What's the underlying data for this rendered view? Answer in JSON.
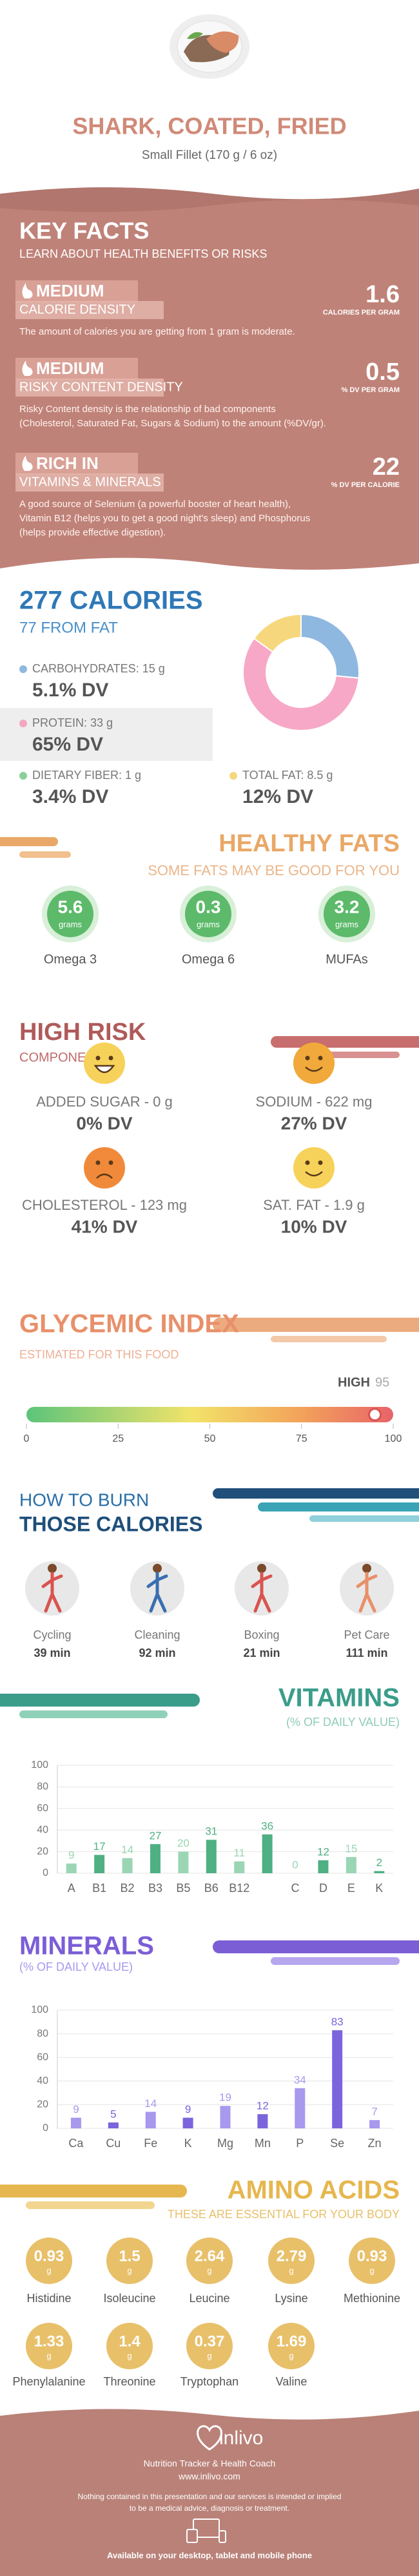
{
  "header": {
    "title": "SHARK, COATED, FRIED",
    "subtitle": "Small Fillet (170 g / 6 oz)"
  },
  "key_facts": {
    "title": "KEY FACTS",
    "subtitle": "LEARN ABOUT HEALTH BENEFITS OR RISKS",
    "items": [
      {
        "level": "MEDIUM",
        "label": "CALORIE DENSITY",
        "value": 1.6,
        "unit": "CALORIES PER GRAM",
        "text": [
          "The amount of calories you are getting from 1 gram is moderate."
        ]
      },
      {
        "level": "MEDIUM",
        "label": "RISKY CONTENT DENSITY",
        "value": 0.5,
        "unit": "% DV PER GRAM",
        "text": [
          "Risky Content density is the relationship of bad components",
          "(Cholesterol, Saturated Fat, Sugars & Sodium) to the amount (%DV/gr)."
        ]
      },
      {
        "level": "RICH IN",
        "label": "VITAMINS & MINERALS",
        "value": 22,
        "unit": "% DV PER CALORIE",
        "text": [
          "A good source of Selenium (a powerful booster of heart health),",
          "Vitamin B12 (helps you to get a good night's sleep) and Phosphorus",
          "(helps provide effective digestion)."
        ]
      }
    ]
  },
  "calories": {
    "title": "277 CALORIES",
    "subtitle": "77 FROM FAT",
    "nutrients": [
      {
        "name": "CARBOHYDRATES: 15 g",
        "dv": "5.1% DV",
        "color": "#8fb8e0"
      },
      {
        "name": "PROTEIN: 33 g",
        "dv": "65% DV",
        "color": "#f4a6c0"
      },
      {
        "name": "DIETARY FIBER: 1 g",
        "dv": "3.4% DV",
        "color": "#8ccf9a"
      },
      {
        "name": "TOTAL FAT: 8.5 g",
        "dv": "12% DV",
        "color": "#f5d77e"
      }
    ]
  },
  "healthy_fats": {
    "title": "HEALTHY FATS",
    "subtitle": "SOME FATS MAY BE GOOD FOR YOU",
    "unit": "grams",
    "items": [
      {
        "value": 5.6,
        "name": "Omega 3"
      },
      {
        "value": 0.3,
        "name": "Omega 6"
      },
      {
        "value": 3.2,
        "name": "MUFAs"
      }
    ]
  },
  "high_risk": {
    "title": "HIGH RISK",
    "subtitle": "COMPONENTS",
    "items": [
      {
        "name": "ADDED SUGAR - 0 g",
        "dv": "0% DV"
      },
      {
        "name": "SODIUM - 622 mg",
        "dv": "27% DV"
      },
      {
        "name": "CHOLESTEROL - 123 mg",
        "dv": "41% DV"
      },
      {
        "name": "SAT. FAT - 1.9 g",
        "dv": "10% DV"
      }
    ]
  },
  "burn": {
    "title": "HOW TO BURN",
    "subtitle": "THOSE CALORIES",
    "items": [
      {
        "name": "Cycling",
        "time": "39 min"
      },
      {
        "name": "Cleaning",
        "time": "92 min"
      },
      {
        "name": "Boxing",
        "time": "21 min"
      },
      {
        "name": "Pet Care",
        "time": "111 min"
      }
    ]
  },
  "amino_acids": {
    "title": "AMINO ACIDS",
    "subtitle": "THESE ARE ESSENTIAL FOR YOUR BODY",
    "unit": "g",
    "items": [
      {
        "name": "Histidine",
        "value": 0.93
      },
      {
        "name": "Isoleucine",
        "value": 1.5
      },
      {
        "name": "Leucine",
        "value": 2.64
      },
      {
        "name": "Lysine",
        "value": 2.79
      },
      {
        "name": "Methionine",
        "value": 0.93
      },
      {
        "name": "Phenylalanine",
        "value": 1.33
      },
      {
        "name": "Threonine",
        "value": 1.4
      },
      {
        "name": "Tryptophan",
        "value": 0.37
      },
      {
        "name": "Valine",
        "value": 1.69
      }
    ]
  },
  "footer": {
    "brand": "inlivo",
    "tagline": "Nutrition Tracker & Health Coach",
    "url": "www.inlivo.com",
    "disclaimer": [
      "Nothing contained in this presentation and our services is intended or implied",
      "to be a medical advice, diagnosis or treatment."
    ],
    "availability": "Available on your desktop, tablet and mobile phone"
  },
  "chart_data": [
    {
      "type": "pie",
      "values": [
        15,
        33,
        8.5
      ],
      "colors": [
        "#8fb8e0",
        "#f7a8c6",
        "#f6d77e"
      ]
    },
    {
      "type": "gauge",
      "title": "GLYCEMIC INDEX",
      "subtitle": "ESTIMATED FOR THIS FOOD",
      "label": "HIGH",
      "value": 95,
      "xlim": [
        0,
        100
      ],
      "xticks": [
        0,
        25,
        50,
        75,
        100
      ]
    },
    {
      "type": "bar",
      "title": "VITAMINS",
      "subtitle": "(% OF DAILY VALUE)",
      "categories": [
        "A",
        "B1",
        "B2",
        "B3",
        "B5",
        "B6",
        "B12",
        null,
        "C",
        "D",
        "E",
        "K"
      ],
      "values": [
        9,
        17,
        14,
        27,
        20,
        31,
        11,
        36,
        0,
        12,
        15,
        2
      ],
      "colors": [
        "#9ad6b4",
        "#4fb083"
      ],
      "ylim": [
        0,
        100
      ],
      "yticks": [
        0,
        20,
        40,
        60,
        80,
        100
      ],
      "grid": true
    },
    {
      "type": "bar",
      "title": "MINERALS",
      "subtitle": "(% OF DAILY VALUE)",
      "categories": [
        "Ca",
        "Cu",
        "Fe",
        "K",
        "Mg",
        "Mn",
        "P",
        "Se",
        "Zn"
      ],
      "values": [
        9,
        5,
        14,
        9,
        19,
        12,
        34,
        83,
        7
      ],
      "colors": [
        "#a898ee",
        "#7b64dc"
      ],
      "ylim": [
        0,
        100
      ],
      "yticks": [
        0,
        20,
        40,
        60,
        80,
        100
      ],
      "grid": true
    }
  ]
}
